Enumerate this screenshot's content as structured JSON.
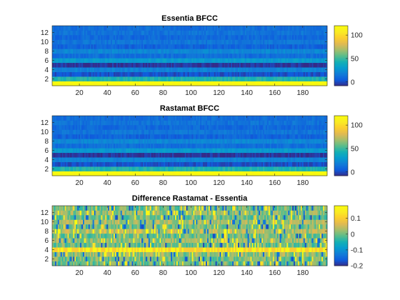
{
  "colormap": "parula",
  "chart_data": [
    {
      "type": "heatmap",
      "title": "Essentia BFCC",
      "x_range": [
        1,
        197
      ],
      "y_range": [
        1,
        13
      ],
      "xticks": [
        20,
        40,
        60,
        80,
        100,
        120,
        140,
        160,
        180
      ],
      "yticks": [
        2,
        4,
        6,
        8,
        10,
        12
      ],
      "color_range": [
        -8,
        120
      ],
      "colorbar_ticks": [
        0,
        50,
        100
      ],
      "row_values": [
        120,
        45,
        2,
        20,
        -5,
        30,
        12,
        22,
        8,
        15,
        10,
        14,
        12
      ]
    },
    {
      "type": "heatmap",
      "title": "Rastamat BFCC",
      "x_range": [
        1,
        197
      ],
      "y_range": [
        1,
        13
      ],
      "xticks": [
        20,
        40,
        60,
        80,
        100,
        120,
        140,
        160,
        180
      ],
      "yticks": [
        2,
        4,
        6,
        8,
        10,
        12
      ],
      "color_range": [
        -8,
        120
      ],
      "colorbar_ticks": [
        0,
        50,
        100
      ],
      "row_values": [
        120,
        45,
        2,
        20,
        -5,
        30,
        12,
        22,
        8,
        15,
        10,
        14,
        12
      ]
    },
    {
      "type": "heatmap",
      "title": "Difference Rastamat - Essentia",
      "x_range": [
        1,
        197
      ],
      "y_range": [
        1,
        13
      ],
      "xticks": [
        20,
        40,
        60,
        80,
        100,
        120,
        140,
        160,
        180
      ],
      "yticks": [
        2,
        4,
        6,
        8,
        10,
        12
      ],
      "color_range": [
        -0.2,
        0.18
      ],
      "colorbar_ticks": [
        0.1,
        0,
        -0.1,
        -0.2
      ],
      "colorbar_tick_labels": [
        "0.1",
        "0",
        "-0.1",
        "-0.2"
      ],
      "row_values": [
        0.0,
        0.0,
        0.02,
        0.12,
        0.0,
        0.02,
        0.0,
        0.04,
        0.0,
        0.03,
        0.0,
        0.02,
        0.0
      ]
    }
  ]
}
